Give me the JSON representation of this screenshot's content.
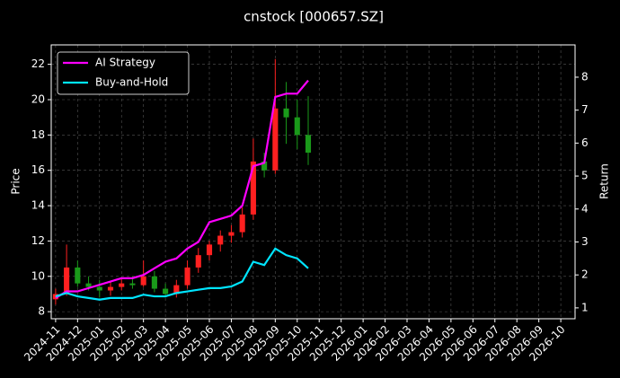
{
  "chart_data": {
    "type": "candlestick",
    "title": "cnstock [000657.SZ]",
    "y_label": "Price",
    "y2_label": "Return",
    "xlim": [
      -0.2,
      23.65
    ],
    "xticks": [
      {
        "value": 0,
        "label": "2024-11"
      },
      {
        "value": 1,
        "label": "2024-12"
      },
      {
        "value": 2,
        "label": "2025-01"
      },
      {
        "value": 3,
        "label": "2025-02"
      },
      {
        "value": 4,
        "label": "2025-03"
      },
      {
        "value": 5,
        "label": "2025-04"
      },
      {
        "value": 6,
        "label": "2025-05"
      },
      {
        "value": 7,
        "label": "2025-06"
      },
      {
        "value": 8,
        "label": "2025-07"
      },
      {
        "value": 9,
        "label": "2025-08"
      },
      {
        "value": 10,
        "label": "2025-09"
      },
      {
        "value": 11,
        "label": "2025-10"
      },
      {
        "value": 12,
        "label": "2025-11"
      },
      {
        "value": 13,
        "label": "2025-12"
      },
      {
        "value": 14,
        "label": "2026-01"
      },
      {
        "value": 15,
        "label": "2026-02"
      },
      {
        "value": 16,
        "label": "2026-03"
      },
      {
        "value": 17,
        "label": "2026-04"
      },
      {
        "value": 18,
        "label": "2026-05"
      },
      {
        "value": 19,
        "label": "2026-06"
      },
      {
        "value": 20,
        "label": "2026-07"
      },
      {
        "value": 21,
        "label": "2026-08"
      },
      {
        "value": 22,
        "label": "2026-09"
      },
      {
        "value": 23,
        "label": "2026-10"
      }
    ],
    "ylim": [
      7.6,
      23.1
    ],
    "yticks": [
      8,
      10,
      12,
      14,
      16,
      18,
      20,
      22
    ],
    "y2lim": [
      0.67,
      8.98
    ],
    "y2ticks": [
      1,
      2,
      3,
      4,
      5,
      6,
      7,
      8
    ],
    "grid": true,
    "legend": "upper left",
    "up_color": "#ff2020",
    "down_color": "#1a9a1a",
    "x": [
      0,
      0.5,
      1,
      1.5,
      2,
      2.5,
      3,
      3.5,
      4,
      4.5,
      5,
      5.5,
      6,
      6.5,
      7,
      7.5,
      8,
      8.5,
      9,
      9.5,
      10,
      10.5,
      11,
      11.5
    ],
    "open": [
      8.7,
      9.0,
      10.5,
      9.6,
      9.4,
      9.2,
      9.4,
      9.6,
      9.5,
      10.0,
      9.3,
      9.0,
      9.5,
      10.5,
      11.2,
      11.8,
      12.3,
      12.5,
      13.5,
      16.5,
      16.0,
      19.5,
      19.0,
      18.0
    ],
    "high": [
      9.3,
      11.8,
      10.9,
      10.0,
      9.8,
      9.7,
      9.9,
      10.0,
      10.9,
      10.3,
      9.6,
      9.8,
      10.9,
      11.6,
      12.0,
      12.6,
      12.9,
      13.9,
      17.8,
      17.0,
      22.3,
      21.0,
      20.0,
      20.2
    ],
    "low": [
      8.4,
      8.9,
      9.4,
      9.2,
      8.8,
      8.9,
      9.2,
      9.3,
      9.4,
      9.1,
      8.8,
      8.8,
      9.3,
      10.2,
      10.9,
      11.4,
      11.9,
      12.2,
      13.2,
      15.6,
      15.8,
      17.5,
      17.2,
      16.3
    ],
    "close": [
      9.0,
      10.5,
      9.6,
      9.4,
      9.2,
      9.4,
      9.6,
      9.5,
      10.0,
      9.3,
      9.0,
      9.5,
      10.5,
      11.2,
      11.8,
      12.3,
      12.5,
      13.5,
      16.5,
      16.0,
      19.5,
      19.0,
      18.0,
      17.0
    ],
    "series": [
      {
        "name": "AI Strategy",
        "color": "#ff00ff",
        "axis": "y2",
        "values": [
          1.3,
          1.5,
          1.5,
          1.6,
          1.7,
          1.8,
          1.9,
          1.9,
          2.0,
          2.2,
          2.4,
          2.5,
          2.8,
          3.0,
          3.6,
          3.7,
          3.8,
          4.1,
          5.3,
          5.4,
          7.4,
          7.5,
          7.5,
          7.9
        ]
      },
      {
        "name": "Buy-and-Hold",
        "color": "#00e5ff",
        "axis": "y2",
        "values": [
          1.35,
          1.45,
          1.35,
          1.3,
          1.25,
          1.3,
          1.3,
          1.3,
          1.4,
          1.35,
          1.35,
          1.45,
          1.5,
          1.55,
          1.6,
          1.6,
          1.65,
          1.8,
          2.4,
          2.3,
          2.8,
          2.6,
          2.5,
          2.2
        ]
      }
    ]
  }
}
